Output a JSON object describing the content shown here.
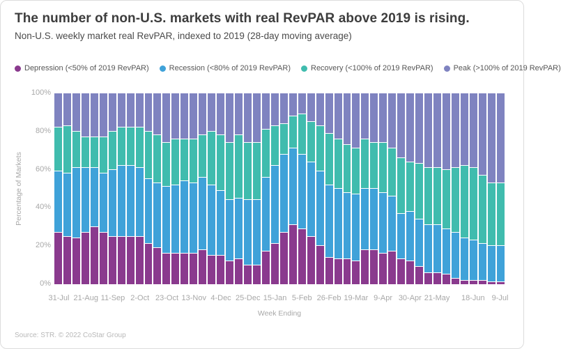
{
  "header": {
    "title": "The number of non-U.S. markets with real RevPAR above 2019 is rising.",
    "subtitle": "Non-U.S. weekly market real RevPAR, indexed to 2019 (28-day moving average)"
  },
  "legend": [
    {
      "key": "depression",
      "label": "Depression (<50% of 2019 RevPAR)",
      "color": "#8a3a8e"
    },
    {
      "key": "recession",
      "label": "Recession (<80% of 2019 RevPAR)",
      "color": "#3fa2d9"
    },
    {
      "key": "recovery",
      "label": "Recovery (<100% of 2019 RevPAR)",
      "color": "#40bcae"
    },
    {
      "key": "peak",
      "label": "Peak (>100% of 2019 RevPAR)",
      "color": "#7f83c0"
    }
  ],
  "chart_data": {
    "type": "bar",
    "stacked": true,
    "stacked_to_100_percent": true,
    "title": "The number of non-U.S. markets with real RevPAR above 2019 is rising.",
    "subtitle": "Non-U.S. weekly market real RevPAR, indexed to 2019 (28-day moving average)",
    "xlabel": "Week Ending",
    "ylabel": "Percentage of Markets",
    "ylim": [
      0,
      100
    ],
    "grid": false,
    "legend_position": "top",
    "yticks": [
      {
        "value": 0,
        "label": "0%"
      },
      {
        "value": 20,
        "label": "20%"
      },
      {
        "value": 40,
        "label": "40%"
      },
      {
        "value": 60,
        "label": "60%"
      },
      {
        "value": 80,
        "label": "80%"
      },
      {
        "value": 100,
        "label": "100%"
      }
    ],
    "categories": [
      "31-Jul",
      "7-Aug",
      "14-Aug",
      "21-Aug",
      "28-Aug",
      "4-Sep",
      "11-Sep",
      "18-Sep",
      "25-Sep",
      "2-Oct",
      "9-Oct",
      "16-Oct",
      "23-Oct",
      "30-Oct",
      "6-Nov",
      "13-Nov",
      "20-Nov",
      "27-Nov",
      "4-Dec",
      "11-Dec",
      "18-Dec",
      "25-Dec",
      "1-Jan",
      "8-Jan",
      "15-Jan",
      "22-Jan",
      "29-Jan",
      "5-Feb",
      "12-Feb",
      "19-Feb",
      "26-Feb",
      "5-Mar",
      "12-Mar",
      "19-Mar",
      "26-Mar",
      "2-Apr",
      "9-Apr",
      "16-Apr",
      "23-Apr",
      "30-Apr",
      "7-May",
      "14-May",
      "21-May",
      "28-May",
      "4-Jun",
      "11-Jun",
      "18-Jun",
      "25-Jun",
      "2-Jul",
      "9-Jul"
    ],
    "xticks": [
      {
        "index": 0,
        "label": "31-Jul"
      },
      {
        "index": 3,
        "label": "21-Aug"
      },
      {
        "index": 6,
        "label": "11-Sep"
      },
      {
        "index": 9,
        "label": "2-Oct"
      },
      {
        "index": 12,
        "label": "23-Oct"
      },
      {
        "index": 15,
        "label": "13-Nov"
      },
      {
        "index": 18,
        "label": "4-Dec"
      },
      {
        "index": 21,
        "label": "25-Dec"
      },
      {
        "index": 24,
        "label": "15-Jan"
      },
      {
        "index": 27,
        "label": "5-Feb"
      },
      {
        "index": 30,
        "label": "26-Feb"
      },
      {
        "index": 33,
        "label": "19-Mar"
      },
      {
        "index": 36,
        "label": "9-Apr"
      },
      {
        "index": 39,
        "label": "30-Apr"
      },
      {
        "index": 42,
        "label": "21-May"
      },
      {
        "index": 46,
        "label": "18-Jun"
      },
      {
        "index": 49,
        "label": "9-Jul"
      }
    ],
    "series": [
      {
        "key": "depression",
        "name": "Depression (<50% of 2019 RevPAR)",
        "color": "#8a3a8e",
        "values": [
          27,
          25,
          24,
          27,
          30,
          27,
          25,
          25,
          25,
          25,
          21,
          19,
          16,
          16,
          16,
          16,
          18,
          15,
          15,
          12,
          13,
          10,
          10,
          17,
          21,
          27,
          31,
          29,
          25,
          20,
          14,
          13,
          13,
          12,
          18,
          18,
          16,
          17,
          13,
          12,
          9,
          6,
          6,
          5,
          3,
          2,
          2,
          2,
          1,
          1
        ]
      },
      {
        "key": "recession",
        "name": "Recession (<80% of 2019 RevPAR)",
        "color": "#3fa2d9",
        "values": [
          32,
          33,
          37,
          34,
          31,
          31,
          35,
          37,
          37,
          36,
          34,
          34,
          35,
          36,
          38,
          37,
          38,
          37,
          34,
          32,
          32,
          34,
          34,
          39,
          41,
          41,
          40,
          39,
          39,
          39,
          38,
          37,
          35,
          35,
          32,
          32,
          32,
          29,
          24,
          26,
          25,
          25,
          25,
          24,
          24,
          22,
          21,
          19,
          19,
          19
        ]
      },
      {
        "key": "recovery",
        "name": "Recovery (<100% of 2019 RevPAR)",
        "color": "#40bcae",
        "values": [
          23,
          25,
          19,
          16,
          16,
          19,
          20,
          20,
          20,
          21,
          25,
          25,
          23,
          24,
          22,
          23,
          22,
          28,
          29,
          30,
          33,
          30,
          30,
          25,
          21,
          16,
          17,
          21,
          21,
          24,
          27,
          26,
          25,
          24,
          26,
          24,
          26,
          25,
          29,
          26,
          29,
          30,
          30,
          31,
          34,
          38,
          38,
          36,
          33,
          33
        ]
      },
      {
        "key": "peak",
        "name": "Peak (>100% of 2019 RevPAR)",
        "color": "#7f83c0",
        "values": [
          18,
          17,
          20,
          23,
          23,
          23,
          20,
          18,
          18,
          18,
          20,
          22,
          26,
          24,
          24,
          24,
          22,
          20,
          22,
          26,
          22,
          26,
          26,
          19,
          17,
          16,
          12,
          11,
          15,
          17,
          21,
          24,
          27,
          29,
          24,
          26,
          26,
          29,
          34,
          36,
          37,
          39,
          39,
          40,
          39,
          38,
          39,
          43,
          47,
          47
        ]
      }
    ]
  },
  "footer": {
    "source": "Source: STR. © 2022 CoStar Group"
  }
}
